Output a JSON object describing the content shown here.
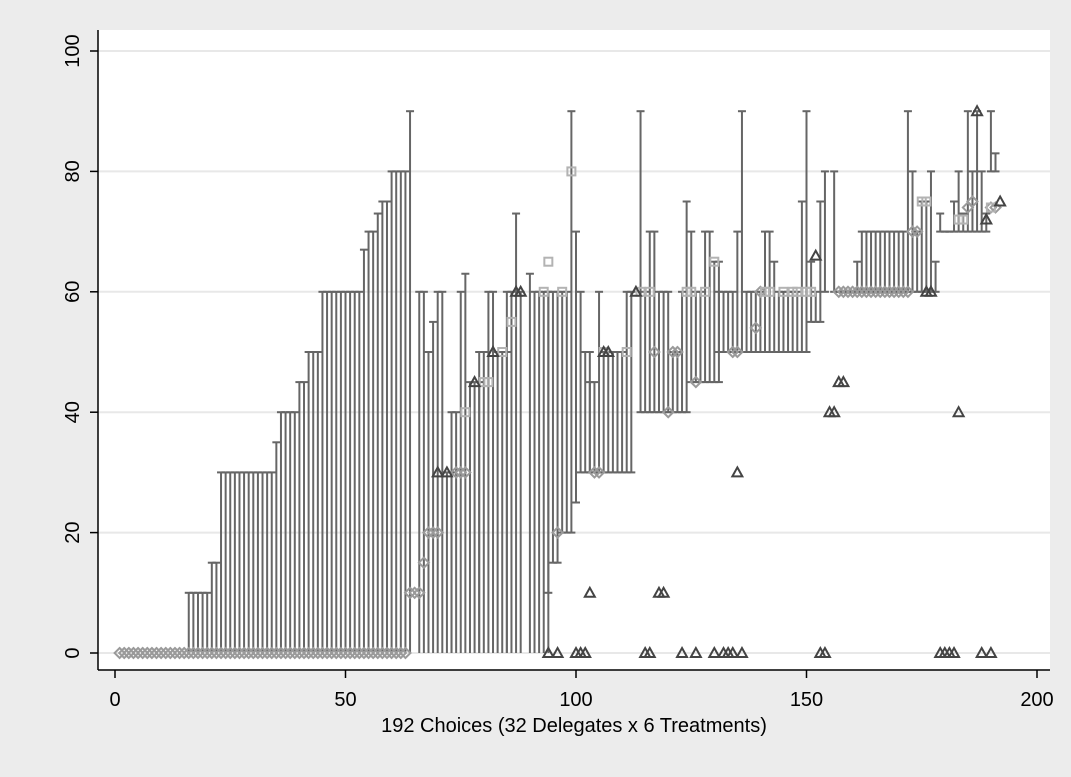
{
  "chart_data": {
    "type": "scatter",
    "title": "",
    "xlabel": "192 Choices (32 Delegates x 6 Treatments)",
    "ylabel": "",
    "xlim": [
      0,
      200
    ],
    "ylim": [
      0,
      100
    ],
    "x_ticks": [
      0,
      50,
      100,
      150,
      200
    ],
    "y_ticks": [
      0,
      20,
      40,
      60,
      80,
      100
    ],
    "grid": "horizontal",
    "legend": "none",
    "colors": {
      "page_background": "#ececec",
      "plot_background": "#ffffff",
      "grid": "#e8e8e8",
      "interval_bars": "#666666",
      "diamond_markers": "#9a9a9a",
      "square_markers": "#b3b3b3",
      "triangle_markers": "#444444"
    },
    "interval_segments": [
      [
        16,
        20,
        0,
        10
      ],
      [
        21,
        22,
        0,
        15
      ],
      [
        23,
        34,
        0,
        30
      ],
      [
        35,
        35,
        0,
        35
      ],
      [
        36,
        37,
        0,
        40
      ],
      [
        38,
        39,
        0,
        40
      ],
      [
        40,
        40,
        0,
        45
      ],
      [
        41,
        41,
        0,
        45
      ],
      [
        42,
        44,
        0,
        50
      ],
      [
        45,
        53,
        0,
        60
      ],
      [
        54,
        54,
        0,
        67
      ],
      [
        55,
        56,
        0,
        70
      ],
      [
        57,
        57,
        0,
        73
      ],
      [
        58,
        59,
        0,
        75
      ],
      [
        60,
        63,
        0,
        80
      ],
      [
        64,
        64,
        0,
        90
      ],
      [
        66,
        67,
        0,
        60
      ],
      [
        68,
        68,
        0,
        50
      ],
      [
        69,
        69,
        0,
        55
      ],
      [
        70,
        71,
        0,
        60
      ],
      [
        72,
        73,
        0,
        30
      ],
      [
        73,
        74,
        0,
        40
      ],
      [
        75,
        75,
        0,
        60
      ],
      [
        76,
        76,
        0,
        63
      ],
      [
        77,
        79,
        0,
        45
      ],
      [
        79,
        80,
        0,
        50
      ],
      [
        81,
        82,
        0,
        60
      ],
      [
        83,
        85,
        0,
        50
      ],
      [
        85,
        86,
        0,
        60
      ],
      [
        87,
        87,
        0,
        73
      ],
      [
        88,
        88,
        0,
        60
      ],
      [
        90,
        90,
        0,
        63
      ],
      [
        91,
        94,
        0,
        60
      ],
      [
        94,
        94,
        10,
        60
      ],
      [
        95,
        96,
        15,
        60
      ],
      [
        97,
        98,
        20,
        60
      ],
      [
        99,
        99,
        20,
        90
      ],
      [
        100,
        100,
        25,
        70
      ],
      [
        101,
        101,
        30,
        60
      ],
      [
        102,
        103,
        30,
        50
      ],
      [
        103,
        104,
        30,
        45
      ],
      [
        105,
        105,
        30,
        60
      ],
      [
        106,
        107,
        30,
        50
      ],
      [
        108,
        110,
        30,
        50
      ],
      [
        111,
        111,
        30,
        60
      ],
      [
        112,
        112,
        30,
        60
      ],
      [
        114,
        114,
        40,
        90
      ],
      [
        115,
        115,
        40,
        60
      ],
      [
        116,
        117,
        40,
        70
      ],
      [
        118,
        120,
        40,
        60
      ],
      [
        121,
        122,
        40,
        50
      ],
      [
        123,
        123,
        40,
        60
      ],
      [
        124,
        124,
        40,
        75
      ],
      [
        125,
        125,
        45,
        70
      ],
      [
        126,
        127,
        45,
        60
      ],
      [
        128,
        129,
        45,
        70
      ],
      [
        130,
        131,
        45,
        65
      ],
      [
        131,
        132,
        50,
        60
      ],
      [
        133,
        134,
        50,
        60
      ],
      [
        135,
        135,
        50,
        70
      ],
      [
        136,
        136,
        50,
        90
      ],
      [
        137,
        138,
        50,
        60
      ],
      [
        139,
        140,
        50,
        60
      ],
      [
        141,
        142,
        50,
        70
      ],
      [
        143,
        143,
        50,
        65
      ],
      [
        144,
        146,
        50,
        60
      ],
      [
        147,
        148,
        50,
        60
      ],
      [
        149,
        149,
        50,
        75
      ],
      [
        150,
        150,
        50,
        90
      ],
      [
        151,
        151,
        55,
        65
      ],
      [
        152,
        152,
        55,
        60
      ],
      [
        153,
        153,
        55,
        75
      ],
      [
        154,
        154,
        60,
        80
      ],
      [
        156,
        156,
        60,
        80
      ],
      [
        157,
        158,
        60,
        60
      ],
      [
        159,
        160,
        60,
        60
      ],
      [
        161,
        161,
        60,
        65
      ],
      [
        162,
        166,
        60,
        70
      ],
      [
        167,
        169,
        60,
        70
      ],
      [
        170,
        171,
        60,
        70
      ],
      [
        172,
        172,
        60,
        90
      ],
      [
        173,
        173,
        60,
        80
      ],
      [
        174,
        174,
        60,
        70
      ],
      [
        175,
        176,
        60,
        75
      ],
      [
        177,
        177,
        60,
        80
      ],
      [
        178,
        178,
        60,
        65
      ],
      [
        179,
        179,
        70,
        73
      ],
      [
        180,
        181,
        70,
        70
      ],
      [
        182,
        182,
        70,
        75
      ],
      [
        183,
        183,
        70,
        80
      ],
      [
        184,
        184,
        70,
        73
      ],
      [
        185,
        185,
        70,
        90
      ],
      [
        186,
        186,
        70,
        80
      ],
      [
        187,
        187,
        70,
        90
      ],
      [
        188,
        188,
        70,
        80
      ],
      [
        189,
        189,
        70,
        73
      ],
      [
        190,
        190,
        80,
        90
      ],
      [
        191,
        191,
        80,
        83
      ]
    ],
    "series": [
      {
        "marker": "diamond",
        "points": [
          [
            1,
            0
          ],
          [
            2,
            0
          ],
          [
            3,
            0
          ],
          [
            4,
            0
          ],
          [
            5,
            0
          ],
          [
            6,
            0
          ],
          [
            7,
            0
          ],
          [
            8,
            0
          ],
          [
            9,
            0
          ],
          [
            10,
            0
          ],
          [
            11,
            0
          ],
          [
            12,
            0
          ],
          [
            13,
            0
          ],
          [
            14,
            0
          ],
          [
            15,
            0
          ],
          [
            16,
            0
          ],
          [
            17,
            0
          ],
          [
            18,
            0
          ],
          [
            19,
            0
          ],
          [
            20,
            0
          ],
          [
            21,
            0
          ],
          [
            22,
            0
          ],
          [
            23,
            0
          ],
          [
            24,
            0
          ],
          [
            25,
            0
          ],
          [
            26,
            0
          ],
          [
            27,
            0
          ],
          [
            28,
            0
          ],
          [
            29,
            0
          ],
          [
            30,
            0
          ],
          [
            31,
            0
          ],
          [
            32,
            0
          ],
          [
            33,
            0
          ],
          [
            34,
            0
          ],
          [
            35,
            0
          ],
          [
            36,
            0
          ],
          [
            37,
            0
          ],
          [
            38,
            0
          ],
          [
            39,
            0
          ],
          [
            40,
            0
          ],
          [
            41,
            0
          ],
          [
            42,
            0
          ],
          [
            43,
            0
          ],
          [
            44,
            0
          ],
          [
            45,
            0
          ],
          [
            46,
            0
          ],
          [
            47,
            0
          ],
          [
            48,
            0
          ],
          [
            49,
            0
          ],
          [
            50,
            0
          ],
          [
            51,
            0
          ],
          [
            52,
            0
          ],
          [
            53,
            0
          ],
          [
            54,
            0
          ],
          [
            55,
            0
          ],
          [
            56,
            0
          ],
          [
            57,
            0
          ],
          [
            58,
            0
          ],
          [
            59,
            0
          ],
          [
            60,
            0
          ],
          [
            61,
            0
          ],
          [
            62,
            0
          ],
          [
            63,
            0
          ],
          [
            64,
            10
          ],
          [
            65,
            10
          ],
          [
            66,
            10
          ],
          [
            67,
            15
          ],
          [
            68,
            20
          ],
          [
            69,
            20
          ],
          [
            70,
            20
          ],
          [
            74,
            30
          ],
          [
            75,
            30
          ],
          [
            76,
            30
          ],
          [
            96,
            20
          ],
          [
            104,
            30
          ],
          [
            105,
            30
          ],
          [
            117,
            50
          ],
          [
            120,
            40
          ],
          [
            121,
            50
          ],
          [
            122,
            50
          ],
          [
            126,
            45
          ],
          [
            134,
            50
          ],
          [
            135,
            50
          ],
          [
            139,
            54
          ],
          [
            140,
            60
          ],
          [
            157,
            60
          ],
          [
            158,
            60
          ],
          [
            159,
            60
          ],
          [
            160,
            60
          ],
          [
            161,
            60
          ],
          [
            162,
            60
          ],
          [
            163,
            60
          ],
          [
            164,
            60
          ],
          [
            165,
            60
          ],
          [
            166,
            60
          ],
          [
            167,
            60
          ],
          [
            168,
            60
          ],
          [
            169,
            60
          ],
          [
            170,
            60
          ],
          [
            171,
            60
          ],
          [
            172,
            60
          ],
          [
            173,
            70
          ],
          [
            174,
            70
          ],
          [
            185,
            74
          ],
          [
            186,
            75
          ],
          [
            190,
            74
          ],
          [
            191,
            74
          ]
        ]
      },
      {
        "marker": "square",
        "points": [
          [
            76,
            40
          ],
          [
            80,
            45
          ],
          [
            81,
            45
          ],
          [
            84,
            50
          ],
          [
            86,
            55
          ],
          [
            93,
            60
          ],
          [
            94,
            65
          ],
          [
            97,
            60
          ],
          [
            99,
            80
          ],
          [
            106,
            50
          ],
          [
            111,
            50
          ],
          [
            114,
            60
          ],
          [
            116,
            60
          ],
          [
            124,
            60
          ],
          [
            125,
            60
          ],
          [
            128,
            60
          ],
          [
            130,
            65
          ],
          [
            141,
            60
          ],
          [
            142,
            60
          ],
          [
            145,
            60
          ],
          [
            147,
            60
          ],
          [
            148,
            60
          ],
          [
            150,
            60
          ],
          [
            151,
            60
          ],
          [
            175,
            75
          ],
          [
            176,
            75
          ],
          [
            183,
            72
          ],
          [
            184,
            72
          ],
          [
            190,
            74
          ]
        ]
      },
      {
        "marker": "triangle",
        "points": [
          [
            70,
            30
          ],
          [
            72,
            30
          ],
          [
            78,
            45
          ],
          [
            82,
            50
          ],
          [
            87,
            60
          ],
          [
            88,
            60
          ],
          [
            94,
            0
          ],
          [
            96,
            0
          ],
          [
            100,
            0
          ],
          [
            101,
            0
          ],
          [
            102,
            0
          ],
          [
            103,
            10
          ],
          [
            106,
            50
          ],
          [
            107,
            50
          ],
          [
            113,
            60
          ],
          [
            115,
            0
          ],
          [
            116,
            0
          ],
          [
            118,
            10
          ],
          [
            119,
            10
          ],
          [
            123,
            0
          ],
          [
            126,
            0
          ],
          [
            130,
            0
          ],
          [
            132,
            0
          ],
          [
            133,
            0
          ],
          [
            134,
            0
          ],
          [
            135,
            30
          ],
          [
            136,
            0
          ],
          [
            152,
            66
          ],
          [
            153,
            0
          ],
          [
            154,
            0
          ],
          [
            155,
            40
          ],
          [
            156,
            40
          ],
          [
            157,
            45
          ],
          [
            158,
            45
          ],
          [
            176,
            60
          ],
          [
            177,
            60
          ],
          [
            179,
            0
          ],
          [
            180,
            0
          ],
          [
            181,
            0
          ],
          [
            182,
            0
          ],
          [
            183,
            40
          ],
          [
            187,
            90
          ],
          [
            188,
            0
          ],
          [
            189,
            72
          ],
          [
            190,
            0
          ],
          [
            192,
            75
          ]
        ]
      }
    ]
  }
}
